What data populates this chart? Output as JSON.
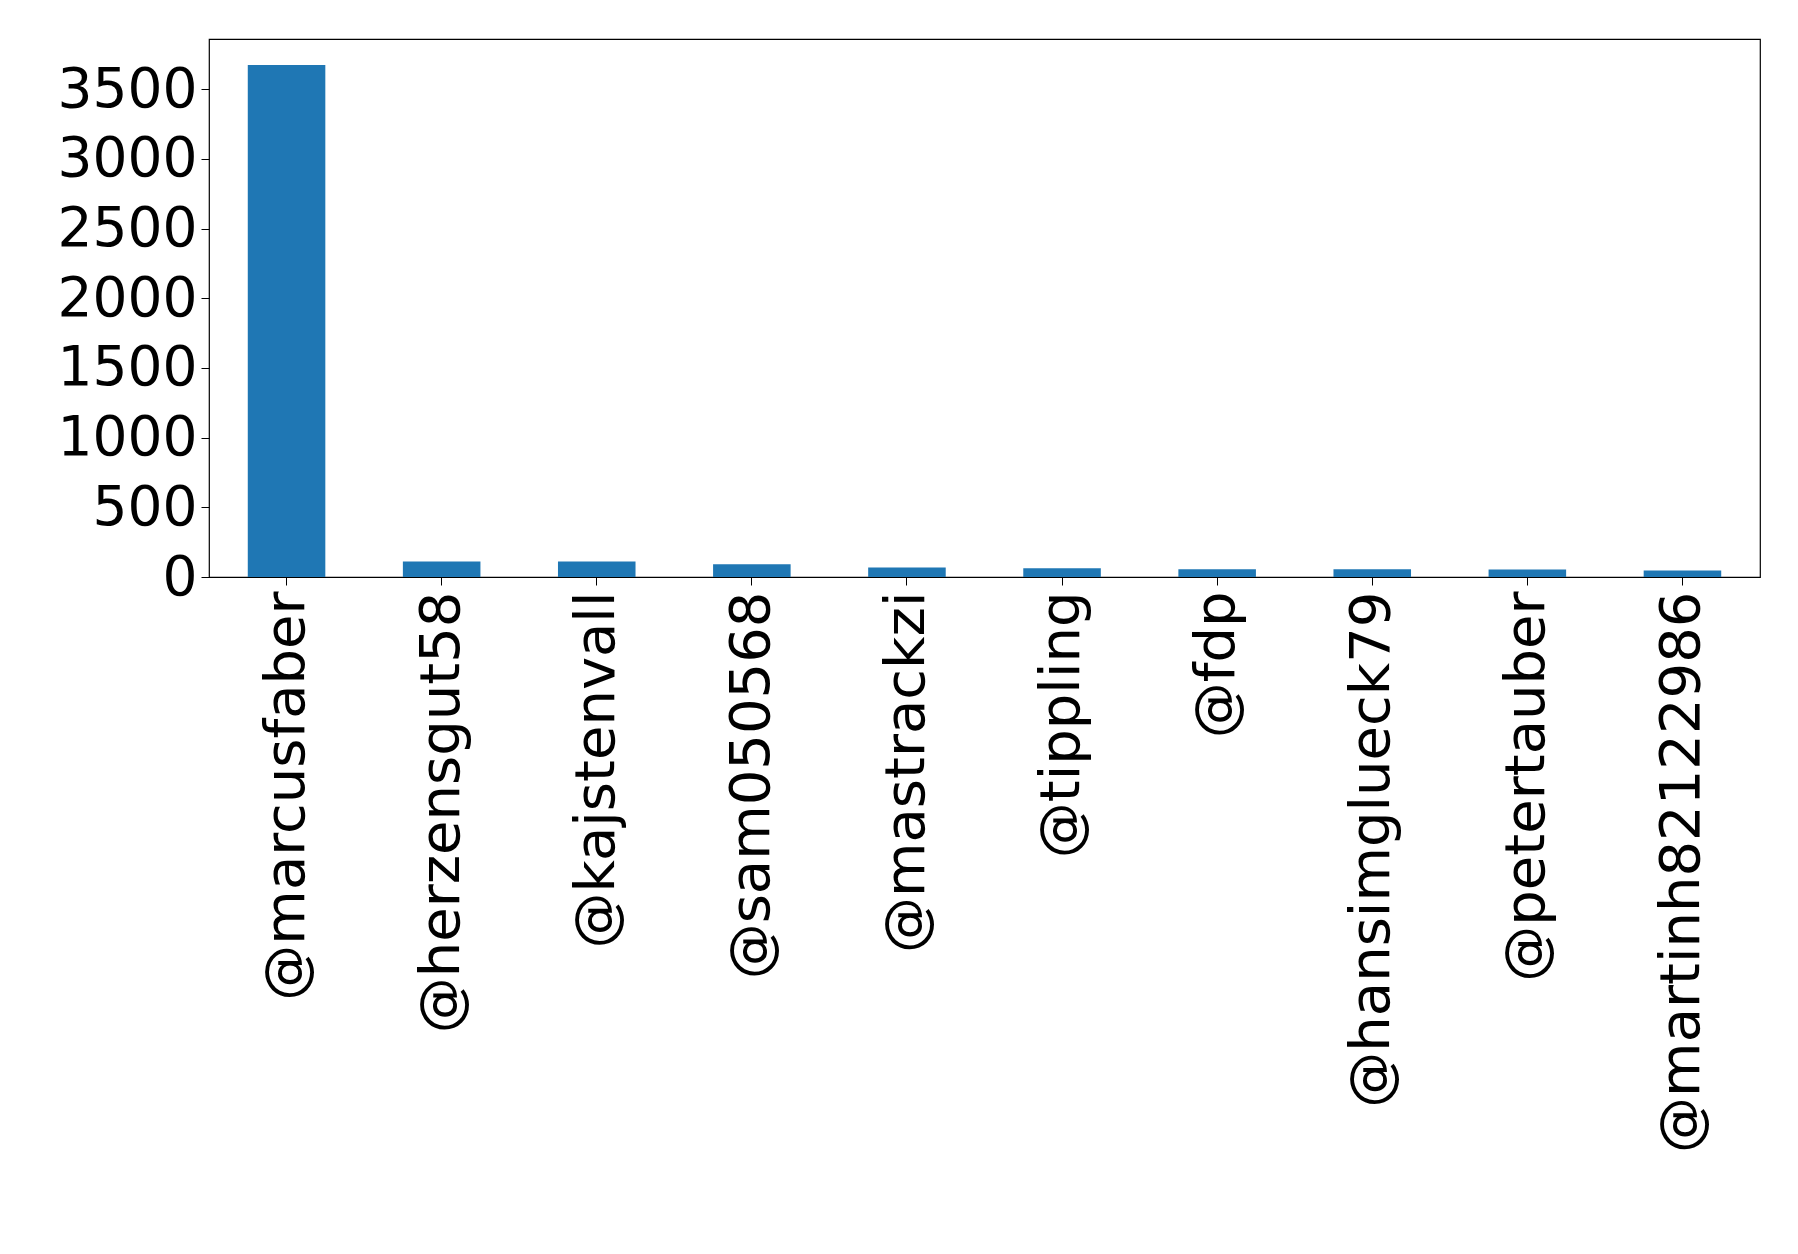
{
  "chart_data": {
    "type": "bar",
    "categories": [
      "@marcusfaber",
      "@herzensgut58",
      "@kajstenvall",
      "@sam050568",
      "@mastrackzi",
      "@tippling",
      "@fdp",
      "@hansimglueck79",
      "@petertauber",
      "@martinh82122986"
    ],
    "values": [
      3674,
      111,
      111,
      91,
      68,
      62,
      55,
      55,
      53,
      46
    ],
    "color": "#1f77b4",
    "ylim": [
      0,
      3860
    ],
    "yticks": [
      0,
      500,
      1000,
      1500,
      2000,
      2500,
      3000,
      3500
    ],
    "grid": false
  }
}
